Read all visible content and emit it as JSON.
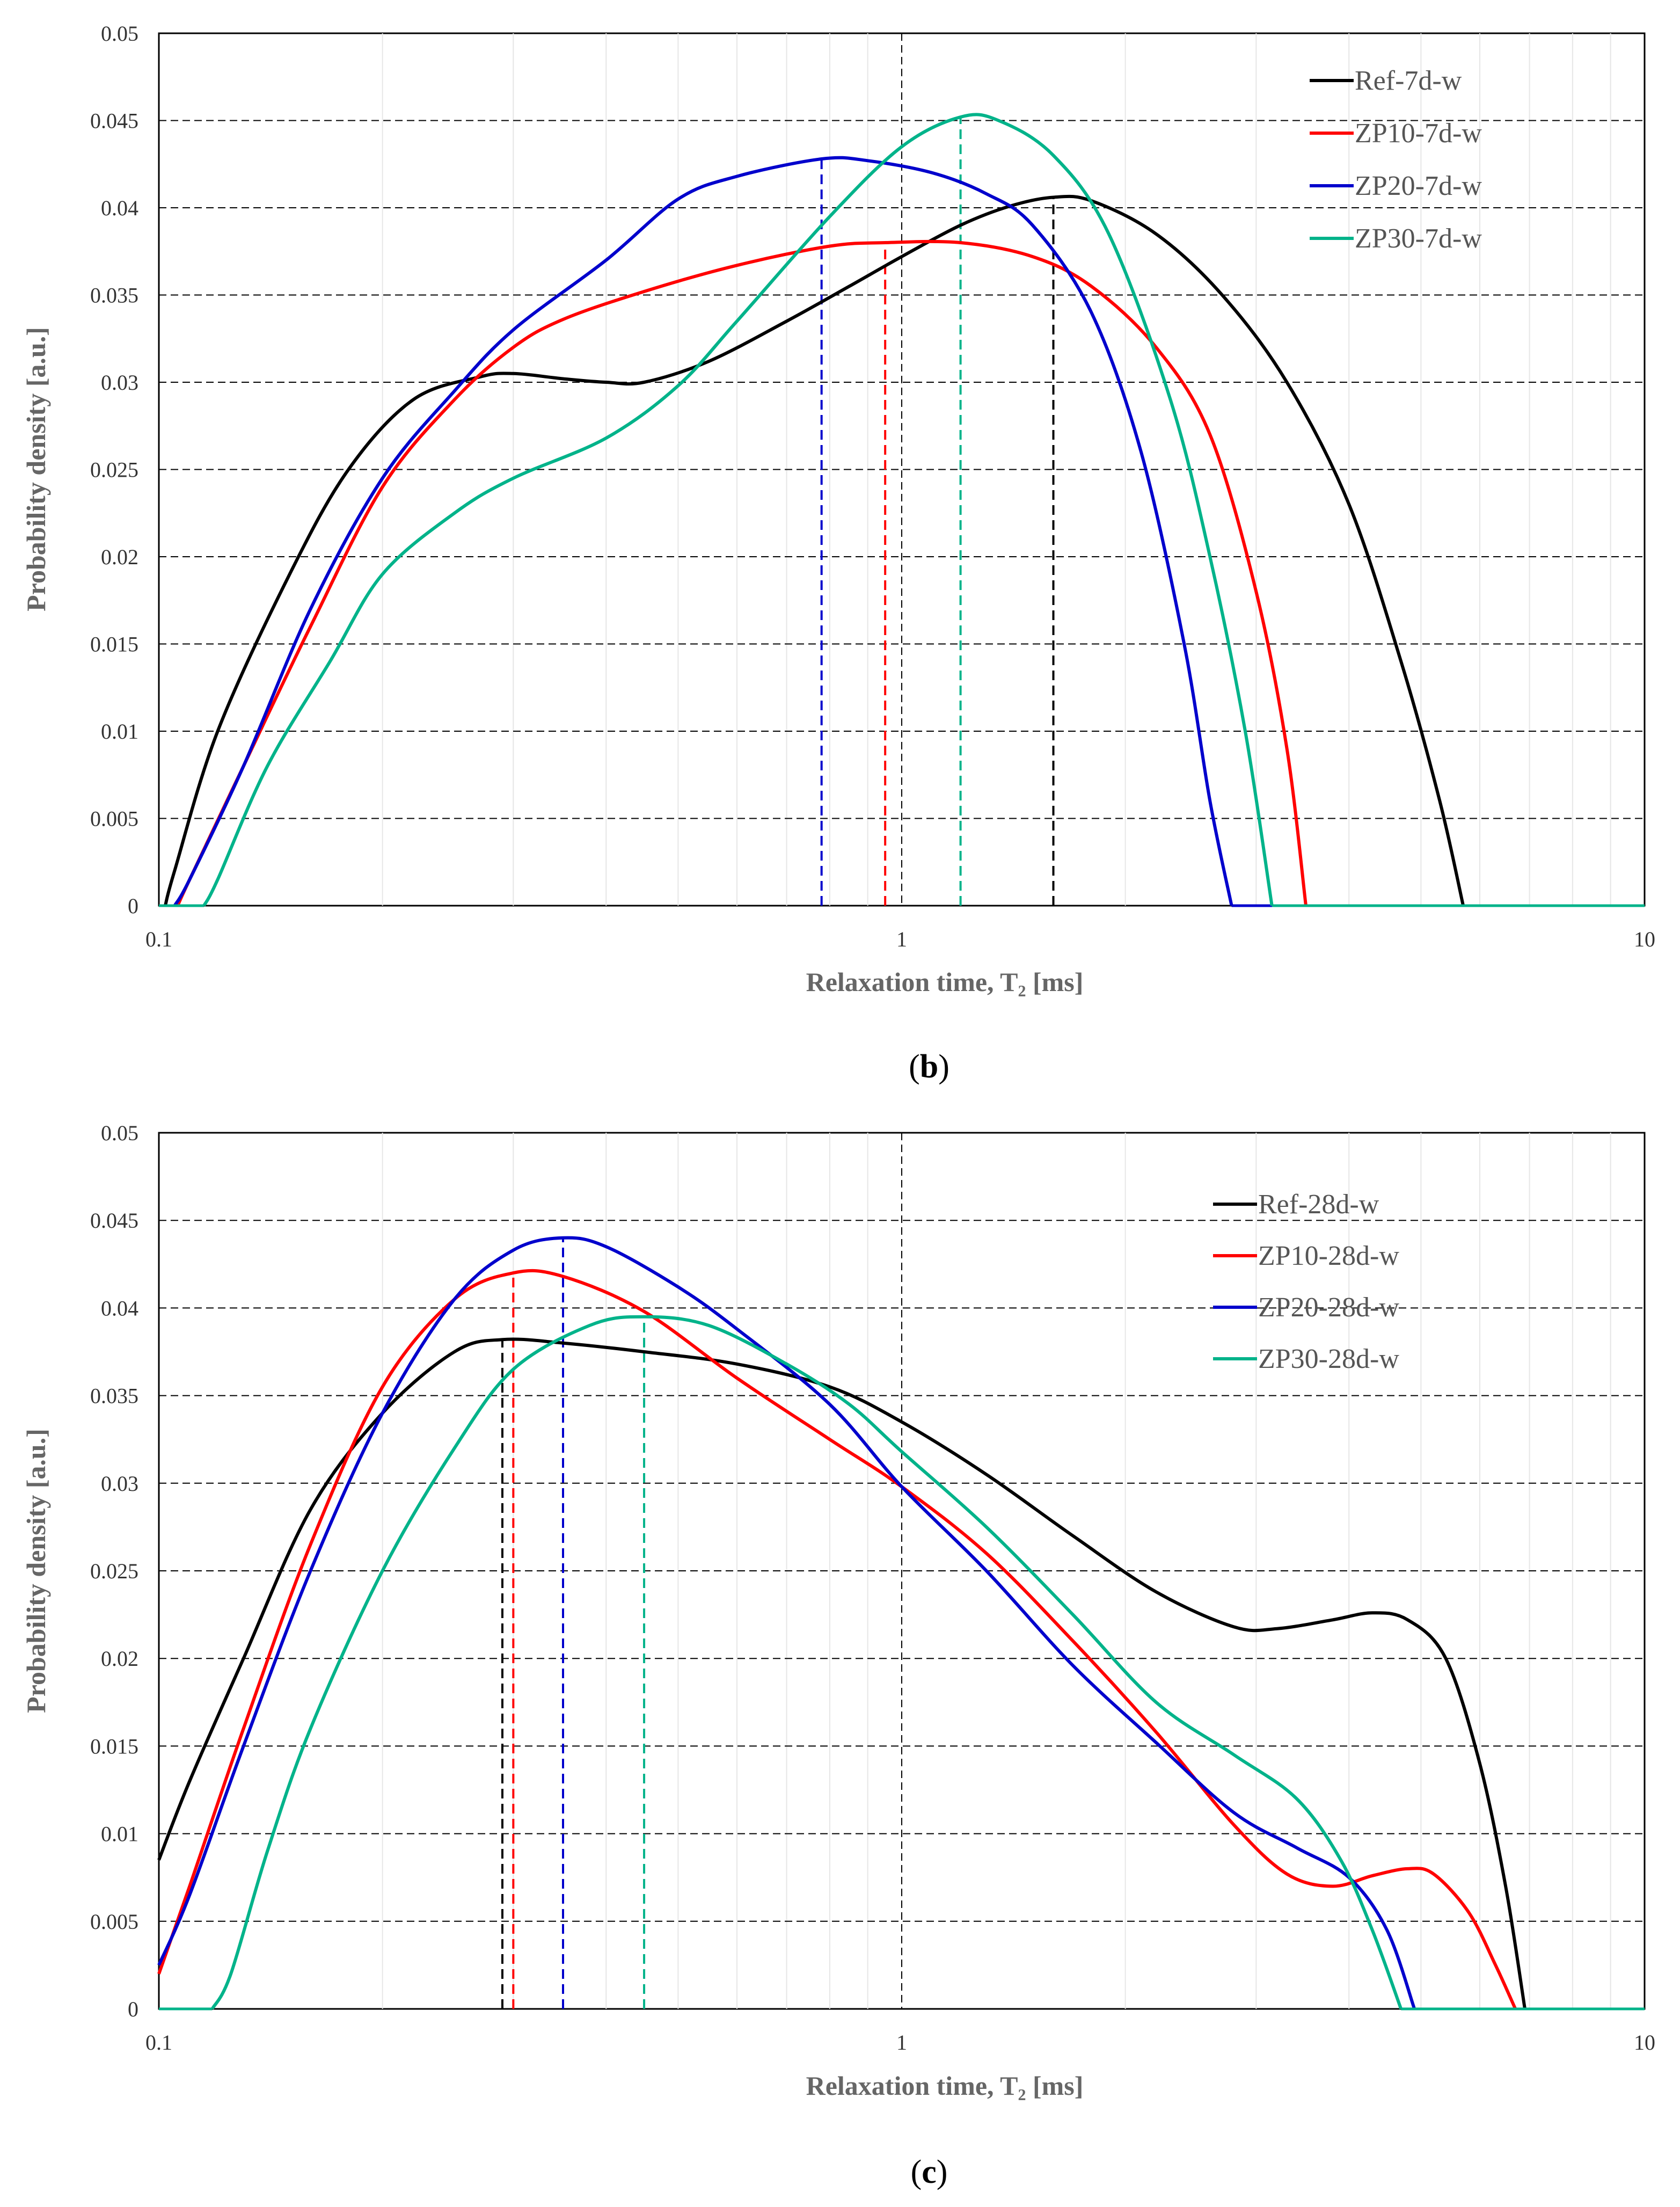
{
  "panels": [
    {
      "label_open": "(",
      "label_letter": "b",
      "label_close": ")"
    },
    {
      "label_open": "(",
      "label_letter": "c",
      "label_close": ")"
    }
  ],
  "chart_data": [
    {
      "type": "line",
      "xscale": "log",
      "xlim": [
        0.1,
        10
      ],
      "ylim": [
        0,
        0.05
      ],
      "xlabel": "Relaxation time, T₂ [ms]",
      "ylabel": "Probability density [a.u.]",
      "xticks": [
        "0.1",
        "1",
        "10"
      ],
      "yticks": [
        "0",
        "0.005",
        "0.01",
        "0.015",
        "0.02",
        "0.025",
        "0.03",
        "0.035",
        "0.04",
        "0.045",
        "0.05"
      ],
      "grid": true,
      "legend_position": "top-right",
      "series": [
        {
          "name": "Ref-7d-w",
          "color": "#000000",
          "peak_x": 1.6,
          "points": [
            [
              0.102,
              0
            ],
            [
              0.105,
              0.002
            ],
            [
              0.12,
              0.01
            ],
            [
              0.15,
              0.019
            ],
            [
              0.18,
              0.025
            ],
            [
              0.22,
              0.029
            ],
            [
              0.27,
              0.0303
            ],
            [
              0.3,
              0.0305
            ],
            [
              0.35,
              0.0302
            ],
            [
              0.4,
              0.03
            ],
            [
              0.45,
              0.03
            ],
            [
              0.55,
              0.0312
            ],
            [
              0.7,
              0.0335
            ],
            [
              0.85,
              0.0355
            ],
            [
              1.0,
              0.0372
            ],
            [
              1.2,
              0.039
            ],
            [
              1.4,
              0.0401
            ],
            [
              1.6,
              0.0406
            ],
            [
              1.8,
              0.0404
            ],
            [
              2.2,
              0.0385
            ],
            [
              2.7,
              0.035
            ],
            [
              3.3,
              0.03
            ],
            [
              4.0,
              0.023
            ],
            [
              4.7,
              0.014
            ],
            [
              5.3,
              0.006
            ],
            [
              5.7,
              0.0
            ]
          ]
        },
        {
          "name": "ZP10-7d-w",
          "color": "#ff0000",
          "peak_x": 0.95,
          "points": [
            [
              0.106,
              0
            ],
            [
              0.11,
              0.0015
            ],
            [
              0.13,
              0.008
            ],
            [
              0.16,
              0.016
            ],
            [
              0.2,
              0.024
            ],
            [
              0.25,
              0.029
            ],
            [
              0.3,
              0.032
            ],
            [
              0.35,
              0.0336
            ],
            [
              0.45,
              0.0352
            ],
            [
              0.6,
              0.0367
            ],
            [
              0.8,
              0.0378
            ],
            [
              0.95,
              0.038
            ],
            [
              1.2,
              0.038
            ],
            [
              1.5,
              0.0372
            ],
            [
              1.8,
              0.0355
            ],
            [
              2.2,
              0.032
            ],
            [
              2.6,
              0.027
            ],
            [
              3.0,
              0.018
            ],
            [
              3.3,
              0.009
            ],
            [
              3.5,
              0.0
            ]
          ]
        },
        {
          "name": "ZP20-7d-w",
          "color": "#0000cc",
          "peak_x": 0.78,
          "points": [
            [
              0.105,
              0
            ],
            [
              0.11,
              0.0015
            ],
            [
              0.13,
              0.008
            ],
            [
              0.16,
              0.017
            ],
            [
              0.2,
              0.0245
            ],
            [
              0.25,
              0.0295
            ],
            [
              0.3,
              0.033
            ],
            [
              0.4,
              0.037
            ],
            [
              0.5,
              0.0405
            ],
            [
              0.6,
              0.0418
            ],
            [
              0.78,
              0.0428
            ],
            [
              0.9,
              0.0427
            ],
            [
              1.1,
              0.042
            ],
            [
              1.3,
              0.0408
            ],
            [
              1.5,
              0.039
            ],
            [
              1.8,
              0.034
            ],
            [
              2.1,
              0.026
            ],
            [
              2.4,
              0.015
            ],
            [
              2.6,
              0.006
            ],
            [
              2.78,
              0.0
            ]
          ]
        },
        {
          "name": "ZP30-7d-w",
          "color": "#00b38a",
          "peak_x": 1.2,
          "points": [
            [
              0.115,
              0
            ],
            [
              0.12,
              0.0015
            ],
            [
              0.14,
              0.008
            ],
            [
              0.17,
              0.014
            ],
            [
              0.2,
              0.019
            ],
            [
              0.25,
              0.0225
            ],
            [
              0.3,
              0.0245
            ],
            [
              0.4,
              0.0268
            ],
            [
              0.5,
              0.0298
            ],
            [
              0.6,
              0.0335
            ],
            [
              0.8,
              0.0395
            ],
            [
              1.0,
              0.0435
            ],
            [
              1.2,
              0.0452
            ],
            [
              1.35,
              0.045
            ],
            [
              1.6,
              0.043
            ],
            [
              1.9,
              0.0385
            ],
            [
              2.3,
              0.029
            ],
            [
              2.6,
              0.02
            ],
            [
              2.9,
              0.01
            ],
            [
              3.15,
              0.0
            ]
          ]
        }
      ]
    },
    {
      "type": "line",
      "xscale": "log",
      "xlim": [
        0.1,
        10
      ],
      "ylim": [
        0,
        0.05
      ],
      "xlabel": "Relaxation time, T₂ [ms]",
      "ylabel": "Probability density [a.u.]",
      "xticks": [
        "0.1",
        "1",
        "10"
      ],
      "yticks": [
        "0",
        "0.005",
        "0.01",
        "0.015",
        "0.02",
        "0.025",
        "0.03",
        "0.035",
        "0.04",
        "0.045",
        "0.05"
      ],
      "grid": true,
      "legend_position": "top-right",
      "series": [
        {
          "name": "Ref-28d-w",
          "color": "#000000",
          "peak_x": 0.29,
          "points": [
            [
              0.1,
              0.0085
            ],
            [
              0.11,
              0.013
            ],
            [
              0.13,
              0.02
            ],
            [
              0.16,
              0.0285
            ],
            [
              0.2,
              0.034
            ],
            [
              0.25,
              0.0375
            ],
            [
              0.29,
              0.0382
            ],
            [
              0.35,
              0.038
            ],
            [
              0.45,
              0.0375
            ],
            [
              0.6,
              0.0368
            ],
            [
              0.8,
              0.0355
            ],
            [
              1.0,
              0.0335
            ],
            [
              1.3,
              0.0305
            ],
            [
              1.7,
              0.027
            ],
            [
              2.2,
              0.0238
            ],
            [
              2.8,
              0.0218
            ],
            [
              3.2,
              0.0217
            ],
            [
              3.8,
              0.0222
            ],
            [
              4.3,
              0.0226
            ],
            [
              4.8,
              0.0222
            ],
            [
              5.4,
              0.02
            ],
            [
              6.0,
              0.014
            ],
            [
              6.5,
              0.007
            ],
            [
              6.9,
              0.0
            ]
          ]
        },
        {
          "name": "ZP10-28d-w",
          "color": "#ff0000",
          "peak_x": 0.3,
          "points": [
            [
              0.1,
              0.002
            ],
            [
              0.11,
              0.007
            ],
            [
              0.13,
              0.016
            ],
            [
              0.16,
              0.0265
            ],
            [
              0.2,
              0.0355
            ],
            [
              0.25,
              0.0405
            ],
            [
              0.3,
              0.042
            ],
            [
              0.35,
              0.0418
            ],
            [
              0.45,
              0.0398
            ],
            [
              0.6,
              0.036
            ],
            [
              0.8,
              0.0325
            ],
            [
              1.0,
              0.0298
            ],
            [
              1.3,
              0.026
            ],
            [
              1.7,
              0.021
            ],
            [
              2.2,
              0.0158
            ],
            [
              2.8,
              0.0105
            ],
            [
              3.3,
              0.0077
            ],
            [
              3.8,
              0.007
            ],
            [
              4.3,
              0.0076
            ],
            [
              4.8,
              0.008
            ],
            [
              5.2,
              0.0077
            ],
            [
              5.8,
              0.0055
            ],
            [
              6.3,
              0.0025
            ],
            [
              6.7,
              0.0
            ]
          ]
        },
        {
          "name": "ZP20-28d-w",
          "color": "#0000cc",
          "peak_x": 0.35,
          "points": [
            [
              0.1,
              0.0025
            ],
            [
              0.11,
              0.0065
            ],
            [
              0.13,
              0.015
            ],
            [
              0.16,
              0.025
            ],
            [
              0.2,
              0.034
            ],
            [
              0.25,
              0.0405
            ],
            [
              0.3,
              0.0433
            ],
            [
              0.35,
              0.044
            ],
            [
              0.4,
              0.0435
            ],
            [
              0.5,
              0.0412
            ],
            [
              0.6,
              0.0388
            ],
            [
              0.8,
              0.0345
            ],
            [
              1.0,
              0.0298
            ],
            [
              1.3,
              0.025
            ],
            [
              1.7,
              0.0196
            ],
            [
              2.2,
              0.0152
            ],
            [
              2.8,
              0.0112
            ],
            [
              3.4,
              0.0092
            ],
            [
              4.0,
              0.0075
            ],
            [
              4.5,
              0.0045
            ],
            [
              4.9,
              0.0
            ]
          ]
        },
        {
          "name": "ZP30-28d-w",
          "color": "#00b38a",
          "peak_x": 0.45,
          "points": [
            [
              0.118,
              0
            ],
            [
              0.125,
              0.002
            ],
            [
              0.14,
              0.009
            ],
            [
              0.16,
              0.016
            ],
            [
              0.2,
              0.025
            ],
            [
              0.25,
              0.032
            ],
            [
              0.3,
              0.0365
            ],
            [
              0.38,
              0.039
            ],
            [
              0.45,
              0.0395
            ],
            [
              0.55,
              0.039
            ],
            [
              0.7,
              0.0368
            ],
            [
              0.85,
              0.0345
            ],
            [
              1.0,
              0.0318
            ],
            [
              1.3,
              0.0275
            ],
            [
              1.7,
              0.0225
            ],
            [
              2.2,
              0.0175
            ],
            [
              2.8,
              0.0145
            ],
            [
              3.4,
              0.012
            ],
            [
              3.9,
              0.0085
            ],
            [
              4.3,
              0.0045
            ],
            [
              4.7,
              0.0
            ]
          ]
        }
      ]
    }
  ]
}
